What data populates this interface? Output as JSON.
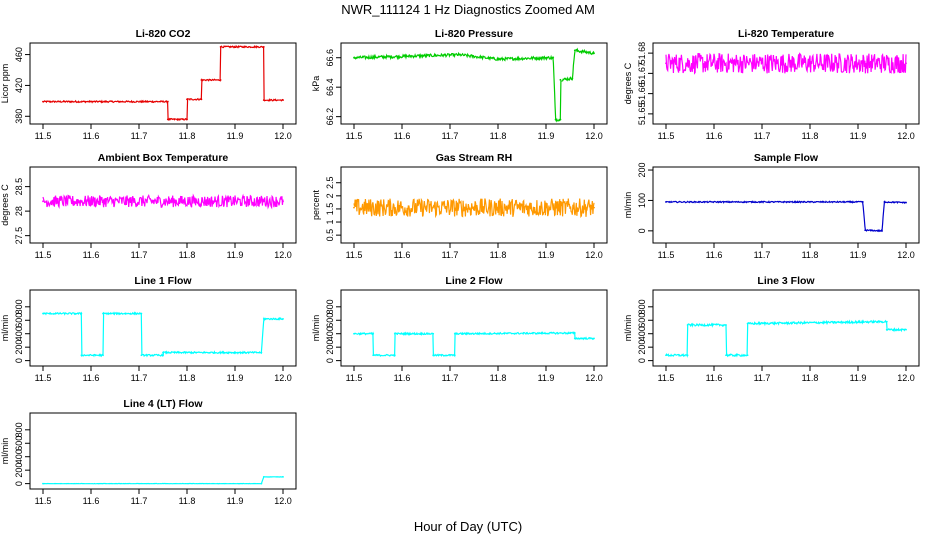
{
  "figure": {
    "title": "NWR_111124  1 Hz Diagnostics Zoomed AM",
    "xlabel": "Hour of Day (UTC)"
  },
  "chart_data": [
    {
      "type": "line",
      "title": "Li-820 CO2",
      "ylabel": "Licor ppm",
      "color": "#e60000",
      "xlim": [
        11.5,
        12.0
      ],
      "ylim": [
        370,
        475
      ],
      "yticks": [
        380,
        420,
        460
      ],
      "xticks": [
        11.5,
        11.6,
        11.7,
        11.8,
        11.9,
        12.0
      ],
      "points": [
        [
          11.5,
          399
        ],
        [
          11.76,
          399
        ],
        [
          11.76,
          376
        ],
        [
          11.8,
          376
        ],
        [
          11.8,
          402
        ],
        [
          11.83,
          402
        ],
        [
          11.83,
          427
        ],
        [
          11.87,
          427
        ],
        [
          11.87,
          470
        ],
        [
          11.96,
          470
        ],
        [
          11.96,
          401
        ],
        [
          12.0,
          401
        ]
      ],
      "noise": 1.0
    },
    {
      "type": "line",
      "title": "Li-820 Pressure",
      "ylabel": "kPa",
      "color": "#00cc00",
      "xlim": [
        11.5,
        12.0
      ],
      "ylim": [
        66.15,
        66.7
      ],
      "yticks": [
        66.2,
        66.4,
        66.6
      ],
      "xticks": [
        11.5,
        11.6,
        11.7,
        11.8,
        11.9,
        12.0
      ],
      "points": [
        [
          11.5,
          66.6
        ],
        [
          11.72,
          66.62
        ],
        [
          11.8,
          66.59
        ],
        [
          11.9,
          66.6
        ],
        [
          11.915,
          66.6
        ],
        [
          11.92,
          66.18
        ],
        [
          11.93,
          66.18
        ],
        [
          11.93,
          66.45
        ],
        [
          11.955,
          66.46
        ],
        [
          11.96,
          66.65
        ],
        [
          12.0,
          66.63
        ]
      ],
      "noise": 0.01
    },
    {
      "type": "line",
      "title": "Li-820 Temperature",
      "ylabel": "degrees C",
      "color": "#ff00ff",
      "xlim": [
        11.5,
        12.0
      ],
      "ylim": [
        51.645,
        51.685
      ],
      "yticks": [
        51.65,
        51.66,
        51.67,
        51.68
      ],
      "xticks": [
        11.5,
        11.6,
        11.7,
        11.8,
        11.9,
        12.0
      ],
      "points": [
        [
          11.5,
          51.675
        ],
        [
          12.0,
          51.675
        ]
      ],
      "noise": 0.005
    },
    {
      "type": "line",
      "title": "Ambient Box Temperature",
      "ylabel": "degrees C",
      "color": "#ff00ff",
      "xlim": [
        11.5,
        12.0
      ],
      "ylim": [
        27.35,
        28.9
      ],
      "yticks": [
        27.5,
        28.0,
        28.5
      ],
      "xticks": [
        11.5,
        11.6,
        11.7,
        11.8,
        11.9,
        12.0
      ],
      "points": [
        [
          11.5,
          28.2
        ],
        [
          12.0,
          28.2
        ]
      ],
      "noise": 0.12
    },
    {
      "type": "line",
      "title": "Gas Stream RH",
      "ylabel": "percent",
      "color": "#ff9900",
      "xlim": [
        11.5,
        12.0
      ],
      "ylim": [
        0.2,
        3.1
      ],
      "yticks": [
        0.5,
        1.0,
        1.5,
        2.0,
        2.5
      ],
      "xticks": [
        11.5,
        11.6,
        11.7,
        11.8,
        11.9,
        12.0
      ],
      "points": [
        [
          11.5,
          1.55
        ],
        [
          12.0,
          1.55
        ]
      ],
      "noise": 0.35
    },
    {
      "type": "line",
      "title": "Sample Flow",
      "ylabel": "ml/min",
      "color": "#0000cc",
      "xlim": [
        11.5,
        12.0
      ],
      "ylim": [
        -40,
        210
      ],
      "yticks": [
        0,
        100,
        200
      ],
      "xticks": [
        11.5,
        11.6,
        11.7,
        11.8,
        11.9,
        12.0
      ],
      "points": [
        [
          11.5,
          95
        ],
        [
          11.91,
          95
        ],
        [
          11.915,
          2
        ],
        [
          11.95,
          0
        ],
        [
          11.955,
          95
        ],
        [
          12.0,
          93
        ]
      ],
      "noise": 2
    },
    {
      "type": "line",
      "title": "Line 1 Flow",
      "ylabel": "ml/min",
      "color": "#00ffff",
      "xlim": [
        11.5,
        12.0
      ],
      "ylim": [
        -80,
        1050
      ],
      "yticks": [
        0,
        200,
        400,
        600,
        800
      ],
      "xticks": [
        11.5,
        11.6,
        11.7,
        11.8,
        11.9,
        12.0
      ],
      "points": [
        [
          11.5,
          700
        ],
        [
          11.58,
          700
        ],
        [
          11.58,
          80
        ],
        [
          11.625,
          80
        ],
        [
          11.625,
          700
        ],
        [
          11.705,
          700
        ],
        [
          11.705,
          80
        ],
        [
          11.75,
          80
        ],
        [
          11.75,
          120
        ],
        [
          11.955,
          120
        ],
        [
          11.96,
          620
        ],
        [
          12.0,
          620
        ]
      ],
      "noise": 12
    },
    {
      "type": "line",
      "title": "Line 2 Flow",
      "ylabel": "ml/min",
      "color": "#00ffff",
      "xlim": [
        11.5,
        12.0
      ],
      "ylim": [
        -80,
        1050
      ],
      "yticks": [
        0,
        200,
        400,
        600,
        800
      ],
      "xticks": [
        11.5,
        11.6,
        11.7,
        11.8,
        11.9,
        12.0
      ],
      "points": [
        [
          11.5,
          400
        ],
        [
          11.54,
          400
        ],
        [
          11.54,
          80
        ],
        [
          11.585,
          80
        ],
        [
          11.585,
          400
        ],
        [
          11.665,
          400
        ],
        [
          11.665,
          80
        ],
        [
          11.71,
          80
        ],
        [
          11.71,
          400
        ],
        [
          11.96,
          410
        ],
        [
          11.96,
          330
        ],
        [
          12.0,
          330
        ]
      ],
      "noise": 12
    },
    {
      "type": "line",
      "title": "Line 3 Flow",
      "ylabel": "ml/min",
      "color": "#00ffff",
      "xlim": [
        11.5,
        12.0
      ],
      "ylim": [
        -80,
        1050
      ],
      "yticks": [
        0,
        200,
        400,
        600,
        800
      ],
      "xticks": [
        11.5,
        11.6,
        11.7,
        11.8,
        11.9,
        12.0
      ],
      "points": [
        [
          11.5,
          80
        ],
        [
          11.545,
          80
        ],
        [
          11.545,
          530
        ],
        [
          11.625,
          530
        ],
        [
          11.625,
          80
        ],
        [
          11.67,
          80
        ],
        [
          11.67,
          550
        ],
        [
          11.96,
          580
        ],
        [
          11.96,
          460
        ],
        [
          12.0,
          460
        ]
      ],
      "noise": 15
    },
    {
      "type": "line",
      "title": "Line 4 (LT) Flow",
      "ylabel": "ml/min",
      "color": "#00ffff",
      "xlim": [
        11.5,
        12.0
      ],
      "ylim": [
        -80,
        1050
      ],
      "yticks": [
        0,
        200,
        400,
        600,
        800
      ],
      "xticks": [
        11.5,
        11.6,
        11.7,
        11.8,
        11.9,
        12.0
      ],
      "points": [
        [
          11.5,
          0
        ],
        [
          11.955,
          0
        ],
        [
          11.96,
          100
        ],
        [
          12.0,
          100
        ]
      ],
      "noise": 2
    }
  ]
}
